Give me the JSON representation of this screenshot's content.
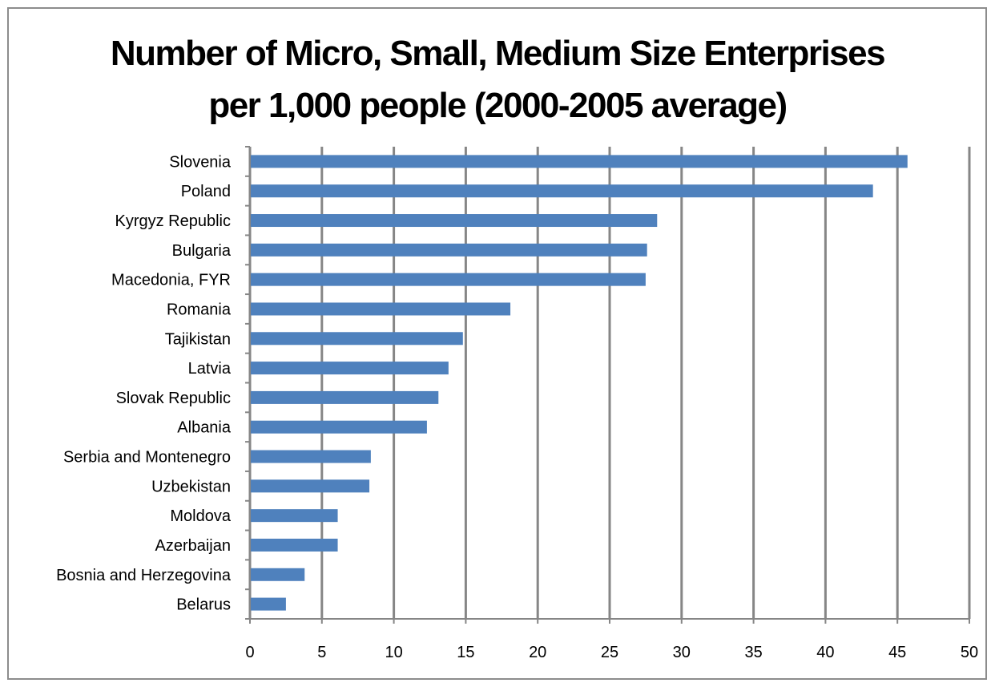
{
  "chart_data": {
    "type": "bar",
    "orientation": "horizontal",
    "title_lines": [
      "Number of Micro, Small, Medium Size Enterprises",
      "per 1,000 people (2000-2005 average)"
    ],
    "categories": [
      "Slovenia",
      "Poland",
      "Kyrgyz Republic",
      "Bulgaria",
      "Macedonia, FYR",
      "Romania",
      "Tajikistan",
      "Latvia",
      "Slovak Republic",
      "Albania",
      "Serbia and Montenegro",
      "Uzbekistan",
      "Moldova",
      "Azerbaijan",
      "Bosnia and Herzegovina",
      "Belarus"
    ],
    "values": [
      45.7,
      43.3,
      28.3,
      27.6,
      27.5,
      18.1,
      14.8,
      13.8,
      13.1,
      12.3,
      8.4,
      8.3,
      6.1,
      6.1,
      3.8,
      2.5
    ],
    "xlim": [
      0,
      50
    ],
    "xticks": [
      "0",
      "5",
      "10",
      "15",
      "20",
      "25",
      "30",
      "35",
      "40",
      "45",
      "50"
    ],
    "grid": "vertical",
    "bar_color": "#4f81bd",
    "grid_color": "#868686"
  }
}
